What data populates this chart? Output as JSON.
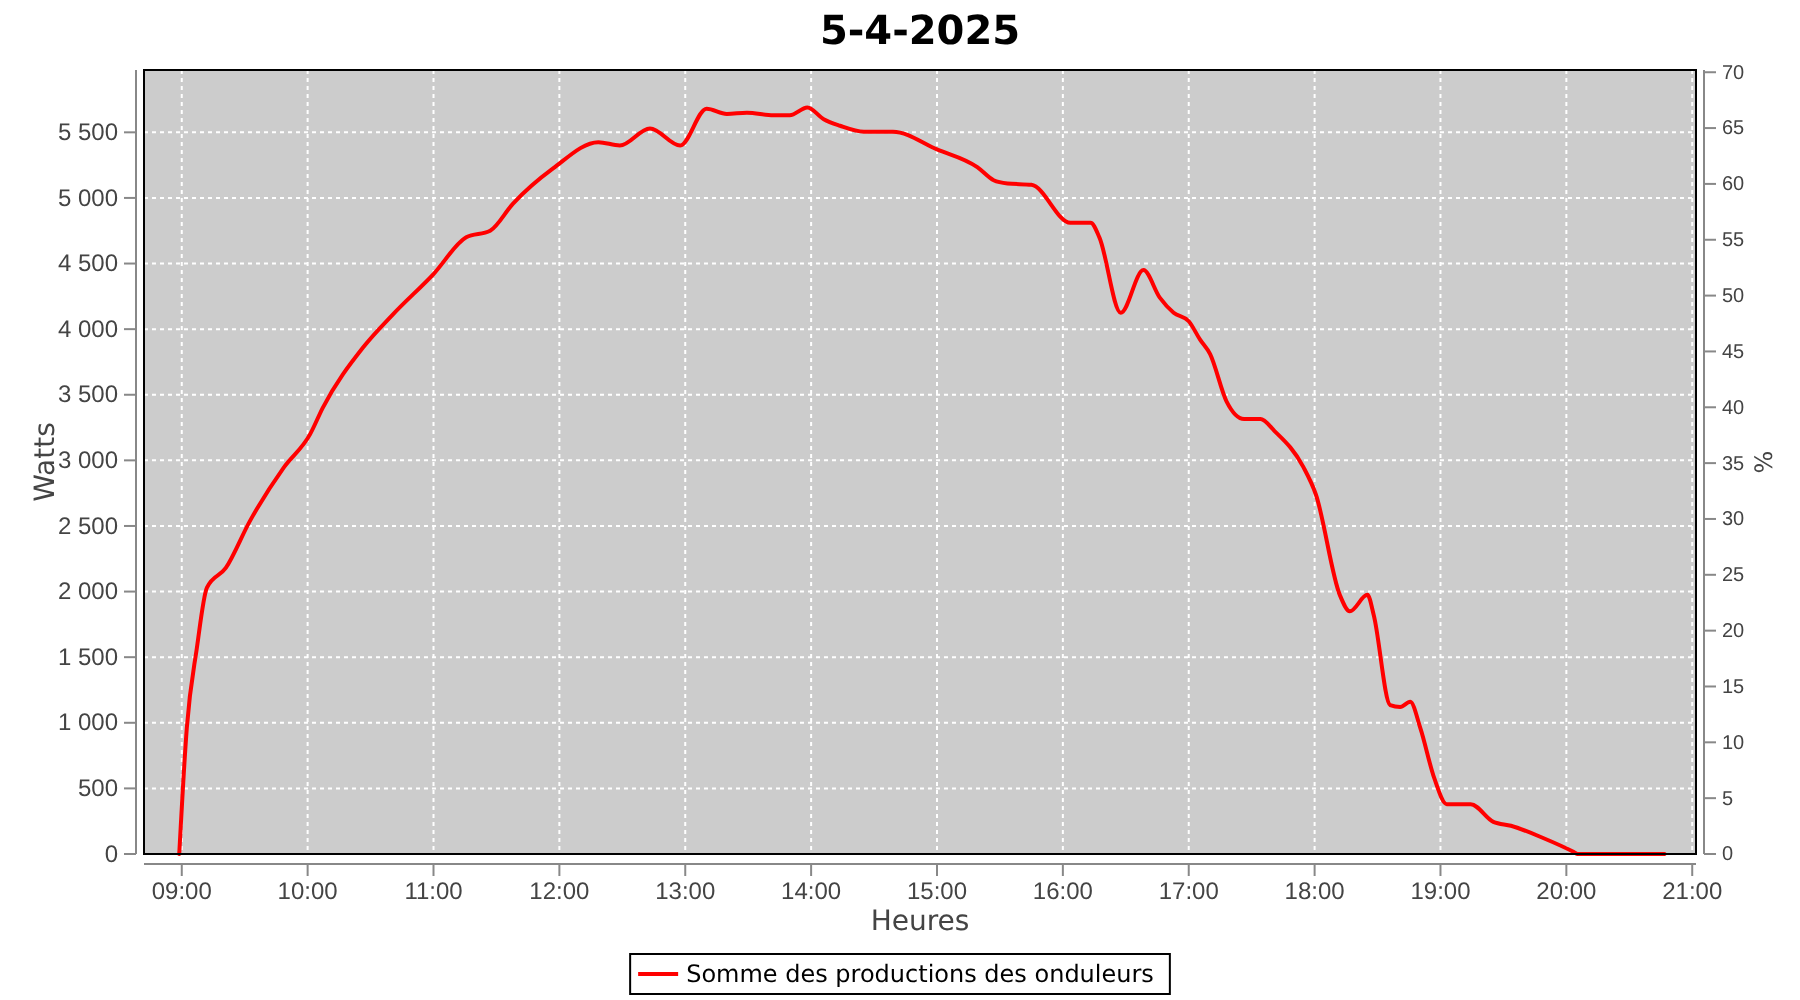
{
  "chart_data": {
    "type": "line",
    "title": "5-4-2025",
    "xlabel": "Heures",
    "ylabel": "Watts",
    "y2label": "%",
    "xlim": [
      8.7,
      21.03
    ],
    "xticks": [
      {
        "value": 9,
        "label": "09:00"
      },
      {
        "value": 10,
        "label": "10:00"
      },
      {
        "value": 11,
        "label": "11:00"
      },
      {
        "value": 12,
        "label": "12:00"
      },
      {
        "value": 13,
        "label": "13:00"
      },
      {
        "value": 14,
        "label": "14:00"
      },
      {
        "value": 15,
        "label": "15:00"
      },
      {
        "value": 16,
        "label": "16:00"
      },
      {
        "value": 17,
        "label": "17:00"
      },
      {
        "value": 18,
        "label": "18:00"
      },
      {
        "value": 19,
        "label": "19:00"
      },
      {
        "value": 20,
        "label": "20:00"
      },
      {
        "value": 21,
        "label": "21:00"
      }
    ],
    "ylim": [
      0,
      5975
    ],
    "yticks": [
      0,
      500,
      {
        "value": 1000,
        "label": "1 000"
      },
      {
        "value": 1500,
        "label": "1 500"
      },
      {
        "value": 2000,
        "label": "2 000"
      },
      {
        "value": 2500,
        "label": "2 500"
      },
      {
        "value": 3000,
        "label": "3 000"
      },
      {
        "value": 3500,
        "label": "3 500"
      },
      {
        "value": 4000,
        "label": "4 000"
      },
      {
        "value": 4500,
        "label": "4 500"
      },
      {
        "value": 5000,
        "label": "5 000"
      },
      {
        "value": 5500,
        "label": "5 500"
      }
    ],
    "y2lim": [
      0,
      70.2
    ],
    "y2ticks": [
      0,
      5,
      10,
      15,
      20,
      25,
      30,
      35,
      40,
      45,
      50,
      55,
      60,
      65,
      70
    ],
    "grid": true,
    "legend": "bottom",
    "line_style": "solid",
    "marker": "none",
    "series": [
      {
        "name": "Somme des productions des onduleurs",
        "color": "#ff0000",
        "x": [
          8.98,
          9.04,
          9.12,
          9.2,
          9.35,
          9.54,
          9.81,
          10.02,
          10.12,
          10.44,
          10.68,
          11.0,
          11.26,
          11.45,
          11.63,
          11.95,
          12.31,
          12.48,
          12.72,
          12.96,
          13.17,
          13.33,
          13.49,
          13.7,
          13.83,
          13.97,
          14.1,
          14.23,
          14.42,
          14.65,
          15.0,
          15.32,
          15.45,
          15.56,
          15.75,
          16.06,
          16.22,
          16.29,
          16.46,
          16.64,
          16.77,
          16.88,
          17.0,
          17.09,
          17.17,
          17.3,
          17.44,
          17.57,
          17.68,
          17.91,
          18.01,
          18.2,
          18.28,
          18.42,
          18.47,
          18.6,
          18.68,
          18.76,
          18.84,
          18.95,
          19.05,
          19.24,
          19.42,
          19.56,
          19.82,
          20.06,
          20.09,
          20.78
        ],
        "values": [
          0,
          960,
          1570,
          2030,
          2180,
          2535,
          2945,
          3200,
          3400,
          3860,
          4115,
          4420,
          4700,
          4750,
          4955,
          5225,
          5425,
          5400,
          5530,
          5400,
          5680,
          5640,
          5650,
          5630,
          5630,
          5690,
          5600,
          5550,
          5505,
          5505,
          5370,
          5235,
          5135,
          5110,
          5100,
          4810,
          4810,
          4700,
          4125,
          4450,
          4240,
          4125,
          4060,
          3920,
          3810,
          3450,
          3315,
          3315,
          3225,
          2950,
          2740,
          1975,
          1850,
          1975,
          1820,
          1135,
          1120,
          1160,
          960,
          580,
          380,
          380,
          245,
          215,
          120,
          15,
          0,
          0
        ]
      }
    ]
  }
}
